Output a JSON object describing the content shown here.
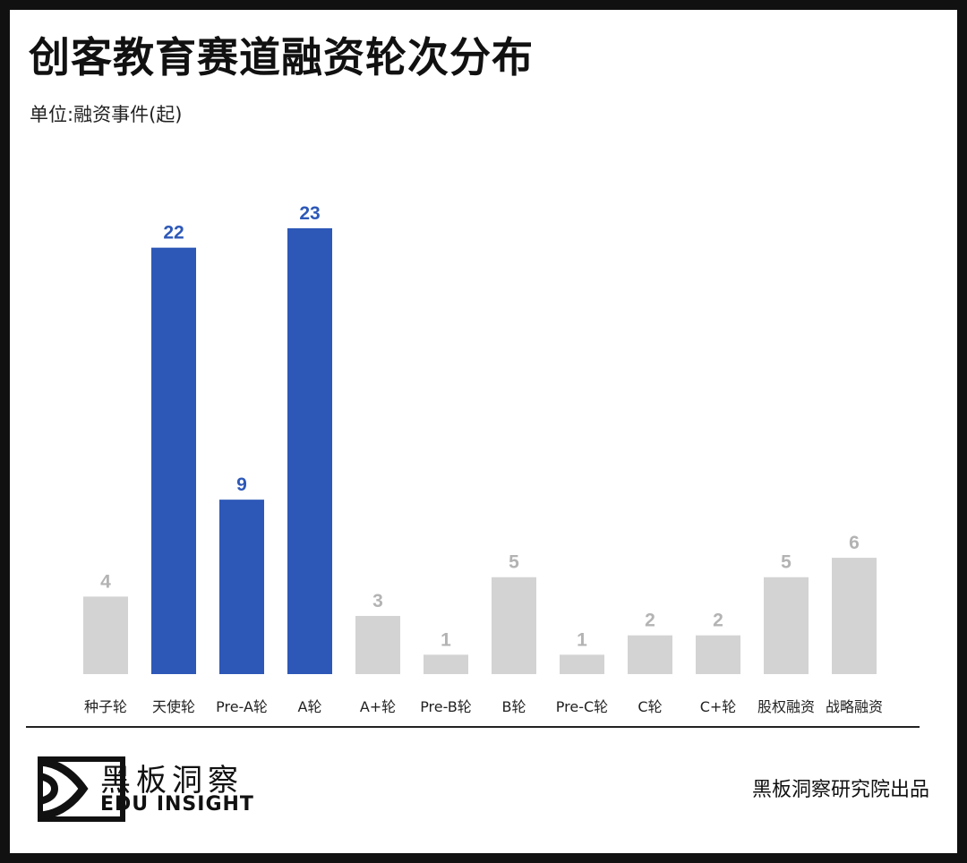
{
  "title": "创客教育赛道融资轮次分布",
  "unit": "单位:融资事件(起)",
  "chart_data": {
    "type": "bar",
    "title": "创客教育赛道融资轮次分布",
    "ylabel": "单位:融资事件(起)",
    "categories": [
      "种子轮",
      "天使轮",
      "Pre-A轮",
      "A轮",
      "A+轮",
      "Pre-B轮",
      "B轮",
      "Pre-C轮",
      "C轮",
      "C+轮",
      "股权融资",
      "战略融资"
    ],
    "values": [
      4,
      22,
      9,
      23,
      3,
      1,
      5,
      1,
      2,
      2,
      5,
      6
    ],
    "highlighted": [
      false,
      true,
      true,
      true,
      false,
      false,
      false,
      false,
      false,
      false,
      false,
      false
    ],
    "ylim": [
      0,
      23
    ],
    "grid": false,
    "colors": {
      "highlight": "#2d58b8",
      "normal": "#d3d3d3",
      "highlight_label": "#2d58b8",
      "normal_label": "#b3b3b3"
    }
  },
  "footer": {
    "brand_cn": "黑板洞察",
    "brand_en": "EDU INSIGHT",
    "credit": "黑板洞察研究院出品"
  }
}
